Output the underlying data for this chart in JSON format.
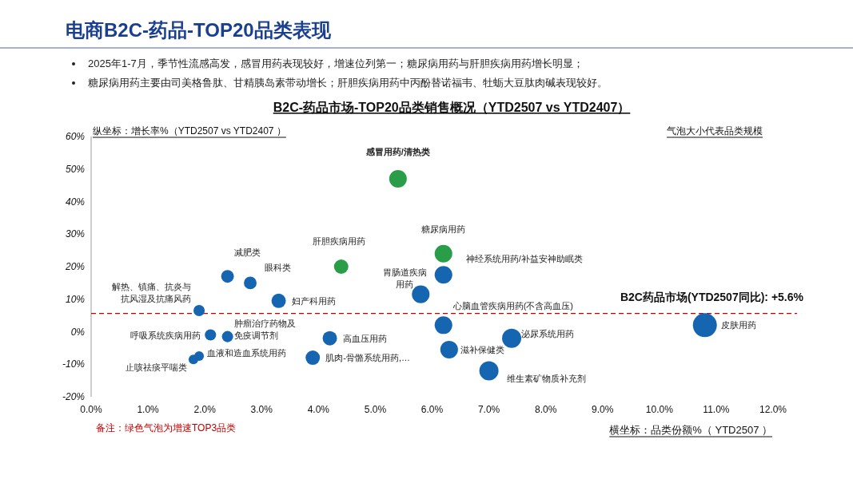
{
  "chart_data": {
    "type": "bubble",
    "title": "B2C-药品市场-TOP20品类销售概况（YTD2507 vs YTD2407）",
    "subtitle": "电商B2C-药品-TOP20品类表现",
    "xlabel": "横坐标：品类份额%（ YTD2507 ）",
    "ylabel": "纵坐标：增长率%（YTD2507 vs YTD2407 ）",
    "annotations": [
      "2025年1-7月，季节性流感高发，感冒用药表现较好，增速位列第一；糖尿病用药与肝胆疾病用药增长明显；",
      "糖尿病用药主要由司美格鲁肽、甘精胰岛素带动增长；肝胆疾病用药中丙酚替诺福韦、牡蛎大豆肽肉碱表现较好。",
      "气泡大小代表品类规模",
      "备注：绿色气泡为增速TOP3品类",
      {
        "text": "感冒用药/清热类",
        "x": 5.4,
        "y": 47
      },
      {
        "text": "糖尿病用药",
        "x": 6.2,
        "y": 24
      },
      {
        "text": "肝胆疾病用药",
        "x": 4.4,
        "y": 20
      },
      {
        "text": "神经系统用药/补益安神助眠类",
        "x": 6.2,
        "y": 17.5
      },
      {
        "text": "减肥类",
        "x": 2.4,
        "y": 17
      },
      {
        "text": "眼科类",
        "x": 2.8,
        "y": 15
      },
      {
        "text": "妇产科用药",
        "x": 3.3,
        "y": 9.5
      },
      {
        "text": "胃肠道疾病用药",
        "x": 5.8,
        "y": 11.5
      },
      {
        "text": "解热、镇痛、抗炎与抗风湿及抗痛风药",
        "x": 1.9,
        "y": 6.5
      },
      {
        "text": "心脑血管疾病用药(不含高血压)",
        "x": 6.2,
        "y": 2
      },
      {
        "text": "皮肤用药",
        "x": 10.8,
        "y": 2
      },
      {
        "text": "呼吸系统疾病用药",
        "x": 2.1,
        "y": -1
      },
      {
        "text": "肿瘤治疗药物及免疫调节剂",
        "x": 2.4,
        "y": -1.5
      },
      {
        "text": "高血压用药",
        "x": 4.2,
        "y": -2
      },
      {
        "text": "泌尿系统用药",
        "x": 7.4,
        "y": -2
      },
      {
        "text": "滋补保健类",
        "x": 6.3,
        "y": -5.5
      },
      {
        "text": "肌肉-骨骼系统用药,…",
        "x": 3.9,
        "y": -8
      },
      {
        "text": "血液和造血系统用药",
        "x": 1.9,
        "y": -7.5
      },
      {
        "text": "止咳祛痰平喘类",
        "x": 1.8,
        "y": -8.5
      },
      {
        "text": "维生素矿物质补充剂",
        "x": 7.0,
        "y": -12
      }
    ],
    "x": [
      5.4,
      6.2,
      4.4,
      6.2,
      2.4,
      2.8,
      3.3,
      5.8,
      1.9,
      6.2,
      10.8,
      2.1,
      2.4,
      4.2,
      7.4,
      6.3,
      3.9,
      1.9,
      1.8,
      7.0
    ],
    "values": [
      47,
      24,
      20,
      17.5,
      17,
      15,
      9.5,
      11.5,
      6.5,
      2,
      2,
      -1,
      -1.5,
      -2,
      -2,
      -5.5,
      -8,
      -7.5,
      -8.5,
      -12
    ],
    "sizes": [
      0.54,
      0.54,
      0.36,
      0.54,
      0.28,
      0.28,
      0.36,
      0.54,
      0.22,
      0.54,
      1,
      0.22,
      0.22,
      0.36,
      0.64,
      0.54,
      0.36,
      0.16,
      0.16,
      0.64
    ],
    "colors": [
      "#2a9d48",
      "#2a9d48",
      "#2a9d48",
      "#1565b0",
      "#1565b0",
      "#1565b0",
      "#1565b0",
      "#1565b0",
      "#1565b0",
      "#1565b0",
      "#1565b0",
      "#1565b0",
      "#1565b0",
      "#1565b0",
      "#1565b0",
      "#1565b0",
      "#1565b0",
      "#1565b0",
      "#1565b0",
      "#1565b0"
    ],
    "xlim": [
      0,
      12
    ],
    "xticks": [
      {
        "value": 0,
        "label": "0.0%"
      },
      {
        "value": 1,
        "label": "1.0%"
      },
      {
        "value": 2,
        "label": "2.0%"
      },
      {
        "value": 3,
        "label": "3.0%"
      },
      {
        "value": 4,
        "label": "4.0%"
      },
      {
        "value": 5,
        "label": "5.0%"
      },
      {
        "value": 6,
        "label": "6.0%"
      },
      {
        "value": 7,
        "label": "7.0%"
      },
      {
        "value": 8,
        "label": "8.0%"
      },
      {
        "value": 9,
        "label": "9.0%"
      },
      {
        "value": 10,
        "label": "10.0%"
      },
      {
        "value": 11,
        "label": "11.0%"
      },
      {
        "value": 12,
        "label": "12.0%"
      }
    ],
    "ylim": [
      -20,
      60
    ],
    "yticks": [
      {
        "value": -20,
        "label": "-20%"
      },
      {
        "value": -10,
        "label": "-10%"
      },
      {
        "value": 0,
        "label": "0%"
      },
      {
        "value": 10,
        "label": "10%"
      },
      {
        "value": 20,
        "label": "20%"
      },
      {
        "value": 30,
        "label": "30%"
      },
      {
        "value": 40,
        "label": "40%"
      },
      {
        "value": 50,
        "label": "50%"
      },
      {
        "value": 60,
        "label": "60%"
      }
    ],
    "ref_lines": [
      {
        "axis": "y",
        "value": 5.6,
        "label": "B2C药品市场(YTD2507同比): +5.6%",
        "color": "#c00000",
        "line_style": "dashed"
      }
    ],
    "grid": false
  }
}
